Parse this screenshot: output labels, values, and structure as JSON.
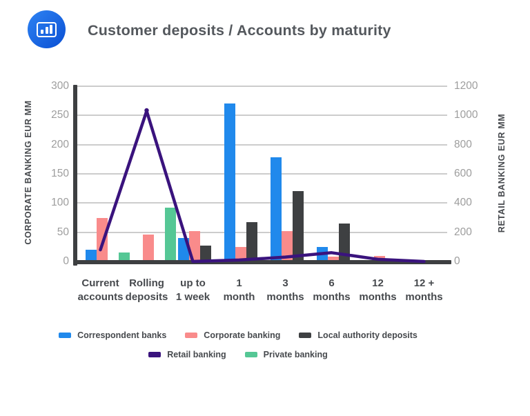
{
  "header": {
    "title": "Customer deposits / Accounts by maturity",
    "logo_icon": "bar-chart-icon"
  },
  "chart_data": {
    "type": "combo-bar-line",
    "title": "Customer deposits / Accounts by maturity",
    "categories": [
      "Current\naccounts",
      "Rolling\ndeposits",
      "up to\n1 week",
      "1\nmonth",
      "3\nmonths",
      "6\nmonths",
      "12\nmonths",
      "12 +\nmonths"
    ],
    "left_axis": {
      "title": "CORPORATE BANKING EUR MM",
      "min": 0,
      "max": 300,
      "step": 50
    },
    "right_axis": {
      "title": "RETAIL BANKING EUR MM",
      "min": 0,
      "max": 1200,
      "step": 200
    },
    "bar_series": [
      {
        "name": "Correspondent banks",
        "color": "#2089EC",
        "axis": "left",
        "values": [
          20,
          0,
          40,
          270,
          178,
          25,
          0,
          0
        ]
      },
      {
        "name": "Corporate banking",
        "color": "#F98B8B",
        "axis": "left",
        "values": [
          75,
          46,
          52,
          25,
          52,
          8,
          10,
          0
        ]
      },
      {
        "name": "Local authority deposits",
        "color": "#3E4042",
        "axis": "left",
        "values": [
          0,
          0,
          27,
          67,
          120,
          65,
          0,
          0
        ]
      },
      {
        "name": "Private banking",
        "color": "#55C795",
        "axis": "left",
        "values": [
          15,
          92,
          0,
          0,
          0,
          0,
          0,
          0
        ]
      }
    ],
    "line_series": [
      {
        "name": "Retail banking",
        "color": "#3A137D",
        "axis": "right",
        "values": [
          80,
          1030,
          0,
          10,
          30,
          60,
          15,
          0
        ]
      }
    ],
    "legend_rows": [
      [
        "Correspondent banks",
        "Corporate banking",
        "Local authority deposits"
      ],
      [
        "Retail banking",
        "Private banking"
      ]
    ],
    "grid": true,
    "legend_position": "bottom"
  }
}
